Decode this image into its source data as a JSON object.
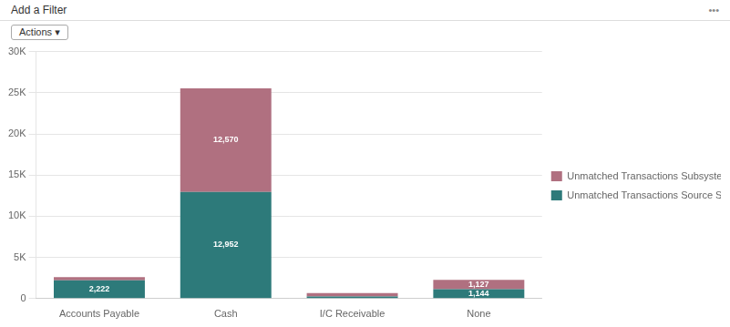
{
  "chart_data": {
    "type": "bar",
    "stacked": true,
    "categories": [
      "Accounts Payable",
      "Cash",
      "I/C Receivable",
      "None"
    ],
    "series": [
      {
        "name": "Unmatched Transactions Source System (Count)",
        "color": "#2d7a7a",
        "values": [
          2222,
          12952,
          250,
          1144
        ],
        "value_labels": [
          "2,222",
          "12,952",
          null,
          "1,144"
        ]
      },
      {
        "name": "Unmatched Transactions Subsystem (Count)",
        "color": "#b07080",
        "values": [
          370,
          12570,
          420,
          1127
        ],
        "value_labels": [
          null,
          "12,570",
          null,
          "1,127"
        ]
      }
    ],
    "ylim": [
      0,
      30000
    ],
    "yticks": [
      0,
      {
        "value": 5000,
        "label": "5K"
      },
      {
        "value": 10000,
        "label": "10K"
      },
      {
        "value": 15000,
        "label": "15K"
      },
      {
        "value": 20000,
        "label": "20K"
      },
      {
        "value": 25000,
        "label": "25K"
      },
      {
        "value": 30000,
        "label": "30K"
      }
    ],
    "grid": true,
    "legend": "right",
    "data_labels": true,
    "annotations": [
      "Add a Filter",
      "Actions ▾",
      "•••"
    ]
  }
}
